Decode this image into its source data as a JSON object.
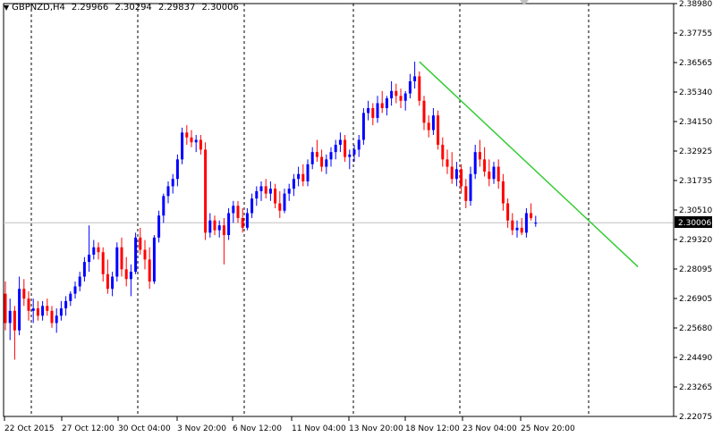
{
  "header": {
    "symbol_tf": "GBPNZD,H4",
    "open": "2.29966",
    "high": "2.30294",
    "low": "2.29837",
    "close": "2.30006"
  },
  "colors": {
    "bull_candle": "#0000ff",
    "bear_candle": "#ff0000",
    "trendline": "#33cc33",
    "grid": "#000000",
    "current_price_line": "#c0c0c0"
  },
  "icons": {
    "menu": "triangle-down-icon",
    "shift_marker": "chart-shift-marker-icon"
  },
  "price_axis": {
    "labels": [
      "2.38980",
      "2.37755",
      "2.36565",
      "2.35340",
      "2.34150",
      "2.32925",
      "2.31735",
      "2.30510",
      "2.29320",
      "2.28095",
      "2.26905",
      "2.25680",
      "2.24490",
      "2.23265",
      "2.22075"
    ],
    "current_price": "2.30006"
  },
  "time_axis": {
    "labels": [
      "22 Oct 2015",
      "27 Oct 12:00",
      "30 Oct 04:00",
      "3 Nov 20:00",
      "6 Nov 12:00",
      "11 Nov 04:00",
      "13 Nov 20:00",
      "18 Nov 12:00",
      "23 Nov 04:00",
      "25 Nov 20:00"
    ]
  },
  "chart_data": {
    "type": "candlestick",
    "symbol": "GBPNZD",
    "timeframe": "H4",
    "ylim": [
      2.22075,
      2.3898
    ],
    "grid": "vertical-dashed",
    "candles": [
      [
        2.271,
        2.276,
        2.256,
        2.259
      ],
      [
        2.259,
        2.269,
        2.252,
        2.264
      ],
      [
        2.264,
        2.266,
        2.244,
        2.256
      ],
      [
        2.256,
        2.278,
        2.254,
        2.273
      ],
      [
        2.273,
        2.277,
        2.266,
        2.269
      ],
      [
        2.269,
        2.272,
        2.26,
        2.264
      ],
      [
        2.264,
        2.269,
        2.259,
        2.265
      ],
      [
        2.265,
        2.268,
        2.26,
        2.262
      ],
      [
        2.262,
        2.268,
        2.26,
        2.266
      ],
      [
        2.266,
        2.269,
        2.262,
        2.264
      ],
      [
        2.264,
        2.266,
        2.257,
        2.259
      ],
      [
        2.259,
        2.265,
        2.255,
        2.262
      ],
      [
        2.262,
        2.268,
        2.26,
        2.265
      ],
      [
        2.265,
        2.27,
        2.262,
        2.268
      ],
      [
        2.268,
        2.272,
        2.266,
        2.271
      ],
      [
        2.271,
        2.276,
        2.269,
        2.274
      ],
      [
        2.274,
        2.28,
        2.272,
        2.278
      ],
      [
        2.278,
        2.286,
        2.276,
        2.284
      ],
      [
        2.284,
        2.299,
        2.28,
        2.287
      ],
      [
        2.287,
        2.293,
        2.285,
        2.29
      ],
      [
        2.29,
        2.292,
        2.285,
        2.288
      ],
      [
        2.288,
        2.29,
        2.276,
        2.279
      ],
      [
        2.279,
        2.285,
        2.271,
        2.273
      ],
      [
        2.273,
        2.28,
        2.27,
        2.278
      ],
      [
        2.278,
        2.292,
        2.276,
        2.29
      ],
      [
        2.29,
        2.294,
        2.278,
        2.281
      ],
      [
        2.281,
        2.286,
        2.274,
        2.277
      ],
      [
        2.277,
        2.283,
        2.27,
        2.28
      ],
      [
        2.28,
        2.296,
        2.279,
        2.294
      ],
      [
        2.294,
        2.298,
        2.287,
        2.289
      ],
      [
        2.289,
        2.293,
        2.281,
        2.285
      ],
      [
        2.285,
        2.29,
        2.273,
        2.276
      ],
      [
        2.276,
        2.295,
        2.275,
        2.294
      ],
      [
        2.294,
        2.305,
        2.292,
        2.303
      ],
      [
        2.303,
        2.312,
        2.3,
        2.311
      ],
      [
        2.311,
        2.317,
        2.308,
        2.315
      ],
      [
        2.315,
        2.32,
        2.312,
        2.318
      ],
      [
        2.318,
        2.328,
        2.315,
        2.326
      ],
      [
        2.326,
        2.339,
        2.324,
        2.337
      ],
      [
        2.337,
        2.34,
        2.332,
        2.335
      ],
      [
        2.335,
        2.338,
        2.331,
        2.333
      ],
      [
        2.333,
        2.336,
        2.329,
        2.334
      ],
      [
        2.334,
        2.336,
        2.328,
        2.33
      ],
      [
        2.33,
        2.333,
        2.293,
        2.296
      ],
      [
        2.296,
        2.304,
        2.294,
        2.301
      ],
      [
        2.301,
        2.303,
        2.295,
        2.297
      ],
      [
        2.297,
        2.301,
        2.294,
        2.299
      ],
      [
        2.299,
        2.302,
        2.283,
        2.295
      ],
      [
        2.295,
        2.306,
        2.293,
        2.304
      ],
      [
        2.304,
        2.309,
        2.3,
        2.307
      ],
      [
        2.307,
        2.309,
        2.3,
        2.302
      ],
      [
        2.302,
        2.306,
        2.296,
        2.298
      ],
      [
        2.298,
        2.306,
        2.297,
        2.304
      ],
      [
        2.304,
        2.312,
        2.302,
        2.31
      ],
      [
        2.31,
        2.315,
        2.307,
        2.313
      ],
      [
        2.313,
        2.317,
        2.309,
        2.315
      ],
      [
        2.315,
        2.318,
        2.31,
        2.312
      ],
      [
        2.312,
        2.317,
        2.309,
        2.314
      ],
      [
        2.314,
        2.316,
        2.306,
        2.308
      ],
      [
        2.308,
        2.313,
        2.302,
        2.305
      ],
      [
        2.305,
        2.314,
        2.304,
        2.312
      ],
      [
        2.312,
        2.316,
        2.309,
        2.314
      ],
      [
        2.314,
        2.32,
        2.311,
        2.318
      ],
      [
        2.318,
        2.323,
        2.315,
        2.32
      ],
      [
        2.32,
        2.324,
        2.315,
        2.317
      ],
      [
        2.317,
        2.326,
        2.315,
        2.324
      ],
      [
        2.324,
        2.331,
        2.322,
        2.329
      ],
      [
        2.329,
        2.334,
        2.325,
        2.327
      ],
      [
        2.327,
        2.33,
        2.321,
        2.323
      ],
      [
        2.323,
        2.328,
        2.32,
        2.326
      ],
      [
        2.326,
        2.331,
        2.323,
        2.329
      ],
      [
        2.329,
        2.334,
        2.326,
        2.332
      ],
      [
        2.332,
        2.337,
        2.329,
        2.334
      ],
      [
        2.334,
        2.336,
        2.325,
        2.327
      ],
      [
        2.327,
        2.33,
        2.322,
        2.328
      ],
      [
        2.328,
        2.332,
        2.325,
        2.33
      ],
      [
        2.33,
        2.336,
        2.327,
        2.334
      ],
      [
        2.334,
        2.347,
        2.332,
        2.345
      ],
      [
        2.345,
        2.35,
        2.342,
        2.347
      ],
      [
        2.347,
        2.349,
        2.34,
        2.343
      ],
      [
        2.343,
        2.352,
        2.341,
        2.349
      ],
      [
        2.349,
        2.354,
        2.345,
        2.347
      ],
      [
        2.347,
        2.352,
        2.344,
        2.351
      ],
      [
        2.351,
        2.358,
        2.348,
        2.354
      ],
      [
        2.354,
        2.357,
        2.349,
        2.352
      ],
      [
        2.352,
        2.355,
        2.347,
        2.35
      ],
      [
        2.35,
        2.354,
        2.346,
        2.353
      ],
      [
        2.353,
        2.361,
        2.351,
        2.358
      ],
      [
        2.358,
        2.366,
        2.355,
        2.36
      ],
      [
        2.36,
        2.362,
        2.348,
        2.35
      ],
      [
        2.35,
        2.352,
        2.338,
        2.341
      ],
      [
        2.341,
        2.344,
        2.335,
        2.338
      ],
      [
        2.338,
        2.347,
        2.336,
        2.344
      ],
      [
        2.344,
        2.346,
        2.33,
        2.332
      ],
      [
        2.332,
        2.335,
        2.323,
        2.326
      ],
      [
        2.326,
        2.33,
        2.32,
        2.323
      ],
      [
        2.323,
        2.329,
        2.316,
        2.318
      ],
      [
        2.318,
        2.325,
        2.315,
        2.322
      ],
      [
        2.322,
        2.324,
        2.312,
        2.315
      ],
      [
        2.315,
        2.318,
        2.306,
        2.309
      ],
      [
        2.309,
        2.323,
        2.307,
        2.32
      ],
      [
        2.32,
        2.332,
        2.318,
        2.329
      ],
      [
        2.329,
        2.334,
        2.323,
        2.326
      ],
      [
        2.326,
        2.331,
        2.319,
        2.321
      ],
      [
        2.321,
        2.326,
        2.315,
        2.318
      ],
      [
        2.318,
        2.325,
        2.316,
        2.323
      ],
      [
        2.323,
        2.326,
        2.314,
        2.317
      ],
      [
        2.317,
        2.32,
        2.305,
        2.308
      ],
      [
        2.308,
        2.31,
        2.298,
        2.301
      ],
      [
        2.301,
        2.304,
        2.295,
        2.297
      ],
      [
        2.297,
        2.301,
        2.294,
        2.298
      ],
      [
        2.298,
        2.302,
        2.295,
        2.296
      ],
      [
        2.296,
        2.306,
        2.294,
        2.304
      ],
      [
        2.304,
        2.308,
        2.301,
        2.302
      ],
      [
        2.2997,
        2.3029,
        2.2984,
        2.3001
      ]
    ],
    "trendline": {
      "from": [
        89,
        2.366
      ],
      "to": [
        136,
        2.282
      ]
    }
  }
}
